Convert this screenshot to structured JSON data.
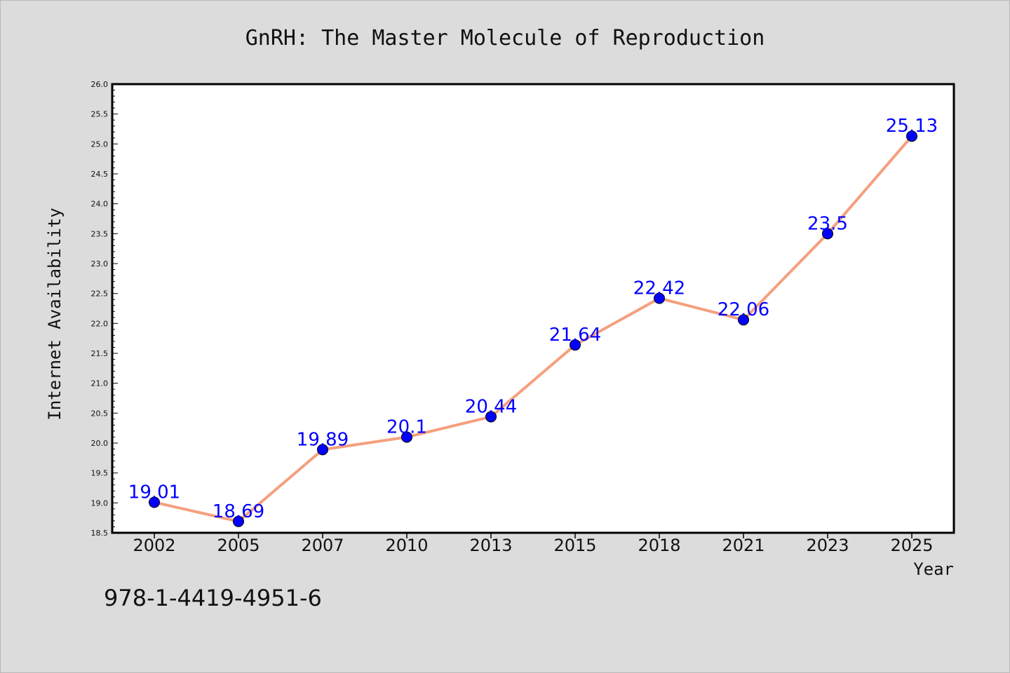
{
  "chart_data": {
    "type": "line",
    "title": "GnRH: The Master Molecule of Reproduction",
    "xlabel": "Year",
    "ylabel": "Internet Availability",
    "categories": [
      "2002",
      "2005",
      "2007",
      "2010",
      "2013",
      "2015",
      "2018",
      "2021",
      "2023",
      "2025"
    ],
    "values": [
      19.01,
      18.69,
      19.89,
      20.1,
      20.44,
      21.64,
      22.42,
      22.06,
      23.5,
      25.13
    ],
    "data_labels": [
      "19.01",
      "18.69",
      "19.89",
      "20.1",
      "20.44",
      "21.64",
      "22.42",
      "22.06",
      "23.5",
      "25.13"
    ],
    "ylim": [
      18.5,
      26.0
    ],
    "yticks": [
      "18.5",
      "19.0",
      "19.5",
      "20.0",
      "20.5",
      "21.0",
      "21.5",
      "22.0",
      "22.5",
      "23.0",
      "23.5",
      "24.0",
      "24.5",
      "25.0",
      "25.5",
      "26.0"
    ],
    "grid": false,
    "line_color": "#f4a07e",
    "marker_color": "#0000ff",
    "label_color": "#0000ff",
    "annotation": "978-1-4419-4951-6"
  }
}
